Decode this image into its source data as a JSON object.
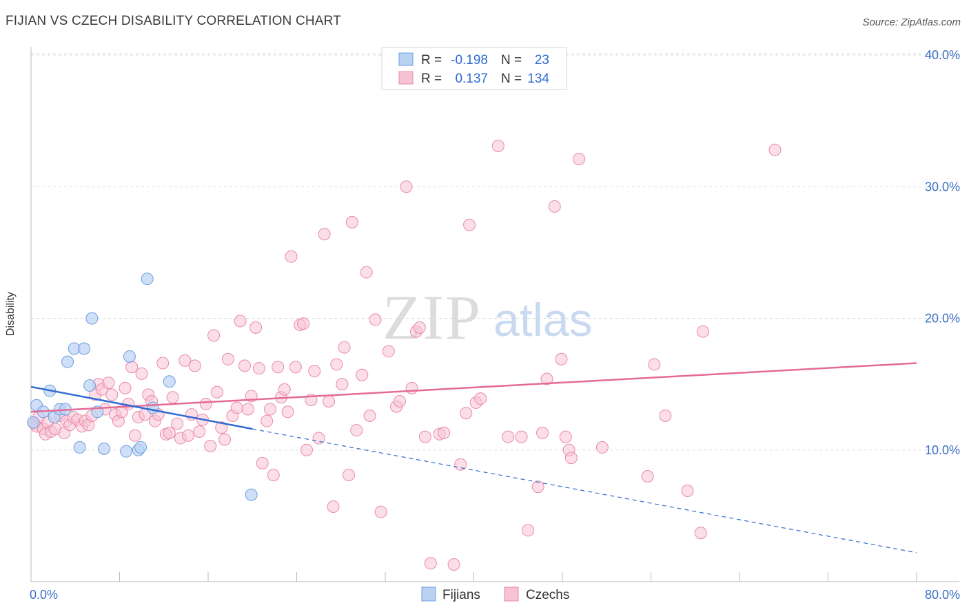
{
  "title": "FIJIAN VS CZECH DISABILITY CORRELATION CHART",
  "source": "Source: ZipAtlas.com",
  "watermark": {
    "zip": "ZIP",
    "atlas": "atlas"
  },
  "colors": {
    "fijians_fill": "#b9d1f3",
    "fijians_stroke": "#6f9fde",
    "fijians_line": "#2f6bd1",
    "czechs_fill": "#f7c3d3",
    "czechs_stroke": "#e98aa8",
    "czechs_line": "#e46a94",
    "axis_label": "#3a6fc4",
    "grid": "#dddddd"
  },
  "legend": {
    "rows": [
      {
        "r_label": "R =",
        "r_value": "-0.198",
        "n_label": "N =",
        "n_value": "23"
      },
      {
        "r_label": "R =",
        "r_value": "0.137",
        "n_label": "N =",
        "n_value": "134"
      }
    ]
  },
  "bottom_legend": [
    "Fijians",
    "Czechs"
  ],
  "chart_data": {
    "type": "scatter",
    "title": "FIJIAN VS CZECH DISABILITY CORRELATION CHART",
    "xlabel": "",
    "ylabel": "Disability",
    "xlim": [
      0,
      80
    ],
    "ylim": [
      0,
      40
    ],
    "x_tick_labels": [
      "0.0%",
      "80.0%"
    ],
    "y_ticks": [
      10,
      20,
      30,
      40
    ],
    "y_tick_labels": [
      "10.0%",
      "20.0%",
      "30.0%",
      "40.0%"
    ],
    "grid": true,
    "legend_placement": "top-center",
    "series": [
      {
        "name": "Fijians",
        "r": -0.198,
        "n": 23,
        "trend": {
          "x0": 0,
          "y0": 14.8,
          "x1": 20,
          "y1": 11.6,
          "dashed_to_x": 80,
          "dashed_to_y": 2.2
        },
        "points": [
          [
            0.2,
            12.1
          ],
          [
            0.5,
            13.4
          ],
          [
            1.1,
            12.9
          ],
          [
            1.7,
            14.5
          ],
          [
            2.1,
            12.5
          ],
          [
            2.6,
            13.1
          ],
          [
            3.1,
            13.1
          ],
          [
            3.3,
            16.7
          ],
          [
            3.9,
            17.7
          ],
          [
            4.4,
            10.2
          ],
          [
            4.8,
            17.7
          ],
          [
            5.3,
            14.9
          ],
          [
            6.0,
            12.9
          ],
          [
            5.5,
            20.0
          ],
          [
            6.6,
            10.1
          ],
          [
            8.6,
            9.9
          ],
          [
            8.9,
            17.1
          ],
          [
            9.7,
            10.0
          ],
          [
            9.9,
            10.2
          ],
          [
            10.5,
            23.0
          ],
          [
            11.0,
            13.2
          ],
          [
            12.5,
            15.2
          ],
          [
            19.9,
            6.6
          ]
        ]
      },
      {
        "name": "Czechs",
        "r": 0.137,
        "n": 134,
        "trend": {
          "x0": 0,
          "y0": 12.9,
          "x1": 80,
          "y1": 16.6
        },
        "points": [
          [
            0.3,
            12.0
          ],
          [
            0.5,
            11.8
          ],
          [
            0.7,
            12.5
          ],
          [
            1.1,
            11.6
          ],
          [
            1.3,
            11.2
          ],
          [
            1.5,
            12.1
          ],
          [
            1.8,
            11.4
          ],
          [
            2.2,
            11.6
          ],
          [
            2.6,
            12.6
          ],
          [
            3.0,
            11.3
          ],
          [
            3.2,
            12.2
          ],
          [
            3.5,
            11.9
          ],
          [
            3.8,
            12.5
          ],
          [
            4.2,
            12.3
          ],
          [
            4.6,
            11.8
          ],
          [
            4.9,
            12.2
          ],
          [
            5.2,
            11.9
          ],
          [
            5.5,
            12.6
          ],
          [
            5.8,
            14.2
          ],
          [
            6.1,
            15.0
          ],
          [
            6.4,
            14.6
          ],
          [
            6.7,
            13.1
          ],
          [
            7.0,
            15.1
          ],
          [
            7.3,
            14.2
          ],
          [
            7.6,
            12.7
          ],
          [
            7.9,
            12.2
          ],
          [
            8.2,
            12.9
          ],
          [
            8.5,
            14.7
          ],
          [
            8.8,
            13.5
          ],
          [
            9.1,
            16.3
          ],
          [
            9.4,
            11.1
          ],
          [
            9.7,
            12.5
          ],
          [
            10.0,
            15.8
          ],
          [
            10.3,
            12.7
          ],
          [
            10.6,
            14.2
          ],
          [
            10.9,
            13.7
          ],
          [
            11.2,
            12.2
          ],
          [
            11.5,
            12.7
          ],
          [
            11.9,
            16.6
          ],
          [
            12.2,
            11.2
          ],
          [
            12.5,
            11.3
          ],
          [
            12.8,
            14.0
          ],
          [
            13.2,
            12.0
          ],
          [
            13.5,
            10.9
          ],
          [
            13.9,
            16.8
          ],
          [
            14.2,
            11.1
          ],
          [
            14.5,
            12.7
          ],
          [
            14.8,
            16.4
          ],
          [
            15.2,
            11.4
          ],
          [
            15.5,
            12.3
          ],
          [
            15.8,
            13.5
          ],
          [
            16.2,
            10.3
          ],
          [
            16.5,
            18.7
          ],
          [
            16.8,
            14.4
          ],
          [
            17.2,
            11.7
          ],
          [
            17.5,
            10.8
          ],
          [
            17.8,
            16.9
          ],
          [
            18.2,
            12.6
          ],
          [
            18.6,
            13.2
          ],
          [
            18.9,
            19.8
          ],
          [
            19.3,
            16.4
          ],
          [
            19.6,
            13.1
          ],
          [
            19.9,
            14.1
          ],
          [
            20.3,
            19.3
          ],
          [
            20.6,
            16.2
          ],
          [
            20.9,
            9.0
          ],
          [
            21.3,
            12.2
          ],
          [
            21.6,
            13.1
          ],
          [
            21.9,
            8.1
          ],
          [
            22.3,
            16.3
          ],
          [
            22.6,
            14.0
          ],
          [
            22.9,
            14.6
          ],
          [
            23.2,
            12.9
          ],
          [
            23.5,
            24.7
          ],
          [
            23.9,
            16.3
          ],
          [
            24.3,
            19.5
          ],
          [
            24.6,
            19.6
          ],
          [
            24.9,
            10.0
          ],
          [
            25.3,
            13.8
          ],
          [
            25.6,
            16.0
          ],
          [
            26.0,
            10.9
          ],
          [
            26.5,
            26.4
          ],
          [
            26.9,
            13.7
          ],
          [
            27.3,
            5.7
          ],
          [
            27.6,
            16.5
          ],
          [
            28.1,
            15.0
          ],
          [
            28.3,
            17.8
          ],
          [
            28.7,
            8.1
          ],
          [
            29.0,
            27.3
          ],
          [
            29.4,
            11.5
          ],
          [
            29.9,
            15.7
          ],
          [
            30.3,
            23.5
          ],
          [
            30.6,
            12.6
          ],
          [
            31.1,
            19.9
          ],
          [
            31.6,
            5.3
          ],
          [
            32.3,
            17.5
          ],
          [
            33.0,
            13.3
          ],
          [
            33.3,
            13.7
          ],
          [
            33.9,
            30.0
          ],
          [
            34.4,
            14.7
          ],
          [
            34.8,
            19.0
          ],
          [
            35.1,
            19.3
          ],
          [
            35.6,
            11.0
          ],
          [
            36.1,
            1.4
          ],
          [
            36.9,
            11.2
          ],
          [
            37.3,
            11.3
          ],
          [
            38.2,
            1.3
          ],
          [
            38.8,
            8.9
          ],
          [
            39.3,
            12.8
          ],
          [
            39.6,
            27.1
          ],
          [
            40.2,
            13.6
          ],
          [
            40.6,
            13.9
          ],
          [
            42.2,
            33.1
          ],
          [
            43.1,
            11.0
          ],
          [
            44.3,
            11.0
          ],
          [
            44.9,
            3.9
          ],
          [
            45.8,
            7.2
          ],
          [
            46.2,
            11.3
          ],
          [
            46.6,
            15.4
          ],
          [
            47.3,
            28.5
          ],
          [
            47.9,
            16.9
          ],
          [
            48.3,
            11.0
          ],
          [
            48.6,
            10.0
          ],
          [
            48.8,
            9.4
          ],
          [
            49.5,
            32.1
          ],
          [
            51.6,
            10.2
          ],
          [
            55.7,
            8.0
          ],
          [
            56.3,
            16.5
          ],
          [
            57.3,
            12.6
          ],
          [
            59.3,
            6.9
          ],
          [
            60.5,
            3.7
          ],
          [
            60.7,
            19.0
          ],
          [
            67.2,
            32.8
          ]
        ]
      }
    ]
  }
}
